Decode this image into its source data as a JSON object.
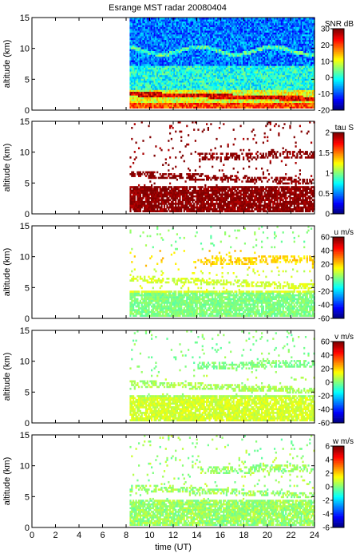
{
  "title": "Esrange MST radar 20080404",
  "xlabel": "time (UT)",
  "chart_data": {
    "type": "heatmap",
    "title": "Esrange MST radar 20080404",
    "xlabel": "time (UT)",
    "xlim": [
      0,
      24
    ],
    "xticks": [
      0,
      2,
      4,
      6,
      8,
      10,
      12,
      14,
      16,
      18,
      20,
      22,
      24
    ],
    "data_start_time_ut": 8.3,
    "panels": [
      {
        "ylabel": "altitude (km)",
        "ylim": [
          0,
          15
        ],
        "yticks": [
          0,
          5,
          10,
          15
        ],
        "colorbar_label": "SNR dB",
        "clim": [
          -20,
          30
        ],
        "cticks": [
          -20,
          -10,
          0,
          10,
          20,
          30
        ],
        "colormap": "jet",
        "layers": [
          {
            "altitude_km": [
              0,
              1
            ],
            "value": 20
          },
          {
            "altitude_km": [
              1,
              3
            ],
            "value": 10
          },
          {
            "altitude_km": [
              3,
              7
            ],
            "value": 0
          },
          {
            "altitude_km": [
              7,
              15
            ],
            "value": -8
          }
        ]
      },
      {
        "ylabel": "altitude (km)",
        "ylim": [
          0,
          15
        ],
        "yticks": [
          0,
          5,
          10,
          15
        ],
        "colorbar_label": "tau S",
        "clim": [
          0,
          2
        ],
        "cticks": [
          0,
          0.5,
          1,
          1.5,
          2
        ],
        "colormap": "jet",
        "typical_value": 2
      },
      {
        "ylabel": "altitude (km)",
        "ylim": [
          0,
          15
        ],
        "yticks": [
          0,
          5,
          10,
          15
        ],
        "colorbar_label": "u m/s",
        "clim": [
          -60,
          60
        ],
        "cticks": [
          -60,
          -40,
          -20,
          0,
          20,
          40,
          60
        ],
        "colormap": "jet",
        "layers": [
          {
            "altitude_km": [
              0,
              4
            ],
            "value": 0
          },
          {
            "altitude_km": [
              4,
              8
            ],
            "value": 10
          },
          {
            "altitude_km": [
              8,
              11
            ],
            "value": 20
          }
        ]
      },
      {
        "ylabel": "altitude (km)",
        "ylim": [
          0,
          15
        ],
        "yticks": [
          0,
          5,
          10,
          15
        ],
        "colorbar_label": "v m/s",
        "clim": [
          -60,
          60
        ],
        "cticks": [
          -60,
          -40,
          -20,
          0,
          20,
          40,
          60
        ],
        "colormap": "jet",
        "layers": [
          {
            "altitude_km": [
              0,
              4
            ],
            "value": 10
          },
          {
            "altitude_km": [
              4,
              8
            ],
            "value": 5
          },
          {
            "altitude_km": [
              8,
              11
            ],
            "value": 0
          }
        ]
      },
      {
        "ylabel": "altitude (km)",
        "ylim": [
          0,
          15
        ],
        "yticks": [
          0,
          5,
          10,
          15
        ],
        "colorbar_label": "w m/s",
        "clim": [
          -6,
          6
        ],
        "cticks": [
          -6,
          -4,
          -2,
          0,
          2,
          4,
          6
        ],
        "colormap": "jet",
        "typical_value": 0.3
      }
    ]
  }
}
